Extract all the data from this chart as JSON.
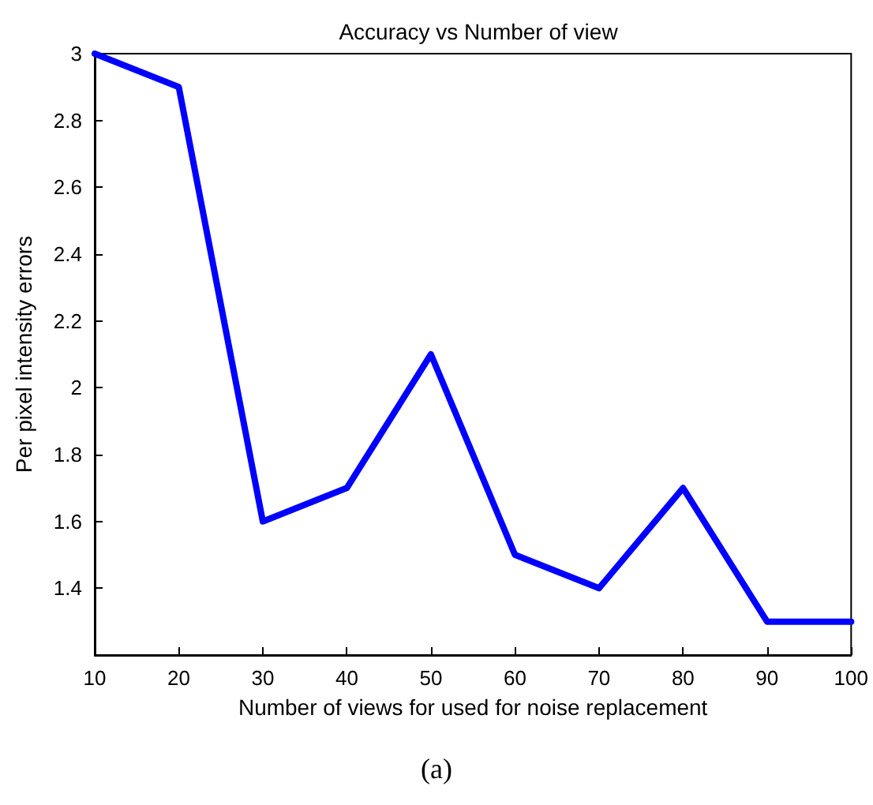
{
  "chart_data": {
    "type": "line",
    "title": "Accuracy vs Number of view",
    "xlabel": "Number of views for used for noise replacement",
    "ylabel": "Per pixel intensity errors",
    "x": [
      10,
      20,
      30,
      40,
      50,
      60,
      70,
      80,
      90,
      100
    ],
    "series": [
      {
        "color": "#0000ff",
        "values": [
          3,
          2.9,
          1.6,
          1.7,
          2.1,
          1.5,
          1.4,
          1.7,
          1.3,
          1.3
        ]
      }
    ],
    "xlim": [
      10,
      100
    ],
    "xticks": [
      10,
      20,
      30,
      40,
      50,
      60,
      70,
      80,
      90,
      100
    ],
    "ylim": [
      1.2,
      3
    ],
    "yticks": [
      1.4,
      1.6,
      1.8,
      2,
      2.2,
      2.4,
      2.6,
      2.8,
      3
    ],
    "marker": "none",
    "line_style": "solid",
    "annotations": [
      "(a)"
    ]
  }
}
